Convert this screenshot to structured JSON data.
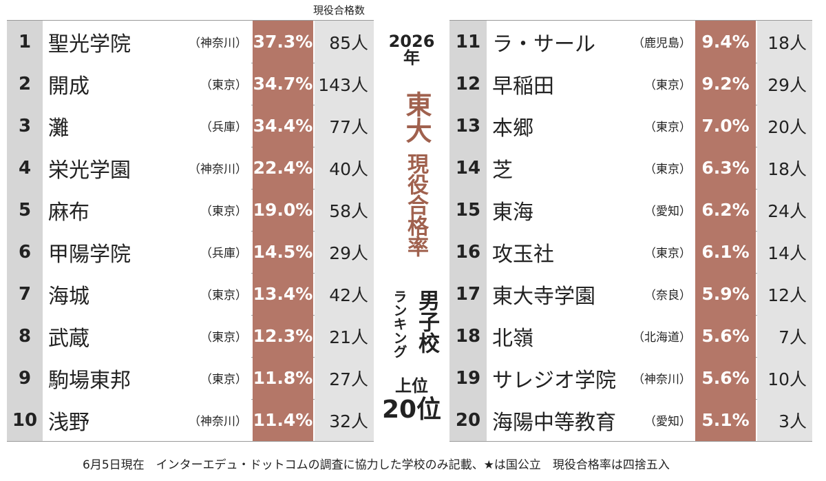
{
  "header": {
    "count_label": "現役合格数"
  },
  "title": {
    "year": "2026",
    "year_suffix": "年",
    "main": "東大",
    "sub": "現役合格率",
    "category": "男子校",
    "ranking": "ランキング",
    "top": "上位",
    "count": "20位"
  },
  "tables": [
    {
      "rows": [
        {
          "rank": "1",
          "school": "聖光学院",
          "pref": "（神奈川）",
          "rate": "37.3%",
          "count": "85人"
        },
        {
          "rank": "2",
          "school": "開成",
          "pref": "（東京）",
          "rate": "34.7%",
          "count": "143人"
        },
        {
          "rank": "3",
          "school": "灘",
          "pref": "（兵庫）",
          "rate": "34.4%",
          "count": "77人"
        },
        {
          "rank": "4",
          "school": "栄光学園",
          "pref": "（神奈川）",
          "rate": "22.4%",
          "count": "40人"
        },
        {
          "rank": "5",
          "school": "麻布",
          "pref": "（東京）",
          "rate": "19.0%",
          "count": "58人"
        },
        {
          "rank": "6",
          "school": "甲陽学院",
          "pref": "（兵庫）",
          "rate": "14.5%",
          "count": "29人"
        },
        {
          "rank": "7",
          "school": "海城",
          "pref": "（東京）",
          "rate": "13.4%",
          "count": "42人"
        },
        {
          "rank": "8",
          "school": "武蔵",
          "pref": "（東京）",
          "rate": "12.3%",
          "count": "21人"
        },
        {
          "rank": "9",
          "school": "駒場東邦",
          "pref": "（東京）",
          "rate": "11.8%",
          "count": "27人"
        },
        {
          "rank": "10",
          "school": "浅野",
          "pref": "（神奈川）",
          "rate": "11.4%",
          "count": "32人"
        }
      ]
    },
    {
      "rows": [
        {
          "rank": "11",
          "school": "ラ・サール",
          "pref": "（鹿児島）",
          "rate": "9.4%",
          "count": "18人"
        },
        {
          "rank": "12",
          "school": "早稲田",
          "pref": "（東京）",
          "rate": "9.2%",
          "count": "29人"
        },
        {
          "rank": "13",
          "school": "本郷",
          "pref": "（東京）",
          "rate": "7.0%",
          "count": "20人"
        },
        {
          "rank": "14",
          "school": "芝",
          "pref": "（東京）",
          "rate": "6.3%",
          "count": "18人"
        },
        {
          "rank": "15",
          "school": "東海",
          "pref": "（愛知）",
          "rate": "6.2%",
          "count": "24人"
        },
        {
          "rank": "16",
          "school": "攻玉社",
          "pref": "（東京）",
          "rate": "6.1%",
          "count": "14人"
        },
        {
          "rank": "17",
          "school": "東大寺学園",
          "pref": "（奈良）",
          "rate": "5.9%",
          "count": "12人"
        },
        {
          "rank": "18",
          "school": "北嶺",
          "pref": "（北海道）",
          "rate": "5.6%",
          "count": "7人"
        },
        {
          "rank": "19",
          "school": "サレジオ学院",
          "pref": "（神奈川）",
          "rate": "5.6%",
          "count": "10人"
        },
        {
          "rank": "20",
          "school": "海陽中等教育",
          "pref": "（愛知）",
          "rate": "5.1%",
          "count": "3人"
        }
      ]
    }
  ],
  "footnote": "6月5日現在　インターエデュ・ドットコムの調査に協力した学校のみ記載、★は国公立　現役合格率は四捨五入"
}
